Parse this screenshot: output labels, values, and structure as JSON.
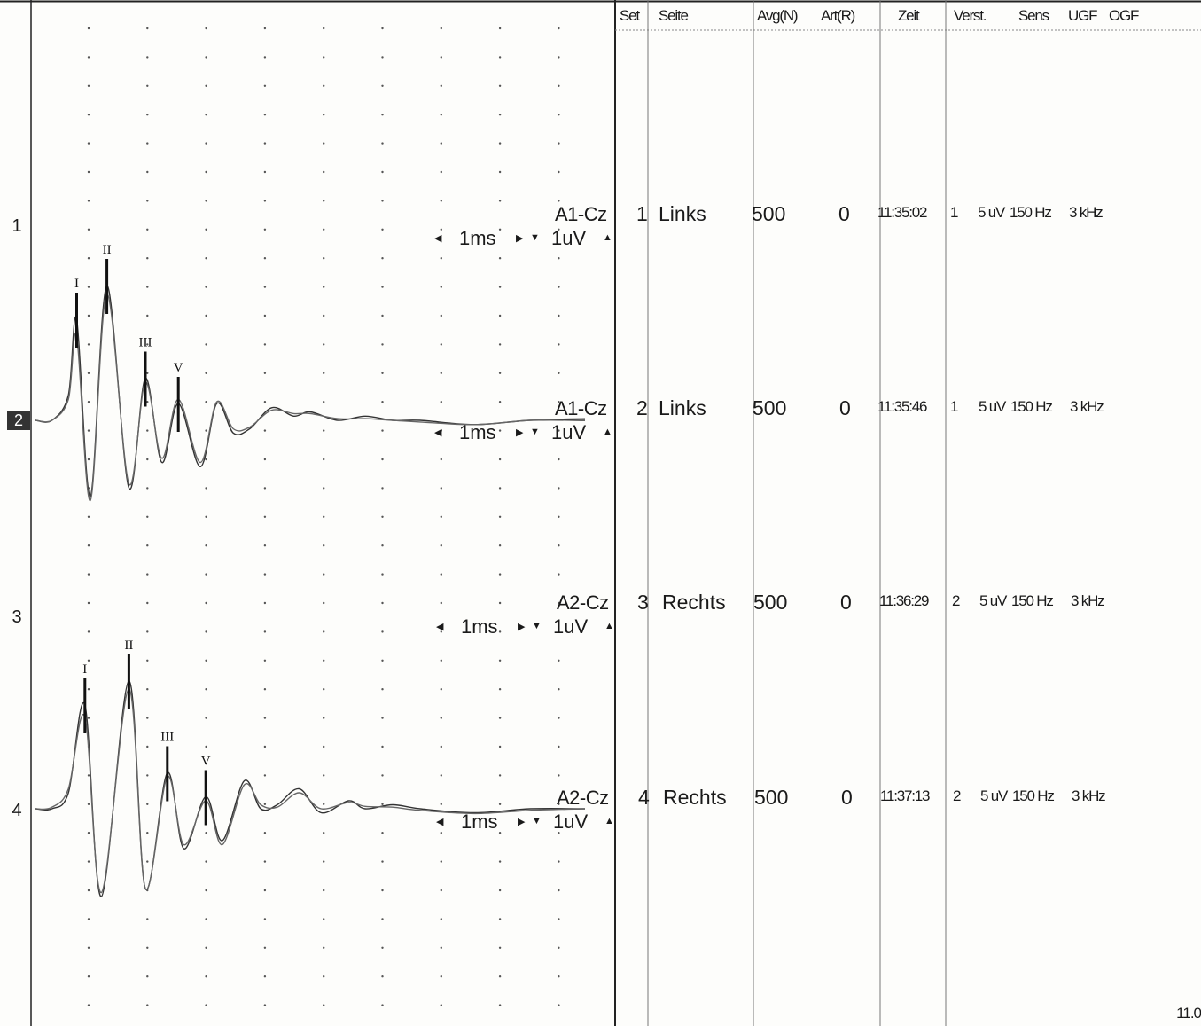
{
  "row_numbers": [
    "1",
    "2",
    "3",
    "4"
  ],
  "active_row": "2",
  "channels": [
    {
      "row": "1",
      "label": "A1-Cz",
      "time_scale": "1ms",
      "amp_scale": "1uV"
    },
    {
      "row": "2",
      "label": "A1-Cz",
      "time_scale": "1ms",
      "amp_scale": "1uV"
    },
    {
      "row": "3",
      "label": "A2-Cz",
      "time_scale": "1ms",
      "amp_scale": "1uV"
    },
    {
      "row": "4",
      "label": "A2-Cz",
      "time_scale": "1ms",
      "amp_scale": "1uV"
    }
  ],
  "arrows": {
    "left": "◀",
    "right": "▶",
    "down": "▼",
    "up": "▲"
  },
  "table": {
    "headers": {
      "set": "Set",
      "seite": "Seite",
      "avg": "Avg(N)",
      "art": "Art(R)",
      "zeit": "Zeit",
      "verst": "Verst.",
      "sens": "Sens",
      "ugf": "UGF",
      "ogf": "OGF"
    },
    "rows": [
      {
        "set": "1",
        "seite": "Links",
        "avg": "500",
        "art": "0",
        "zeit": "11:35:02",
        "verst": "1",
        "sens": "5 uV",
        "ugf": "150 Hz",
        "ogf": "3 kHz"
      },
      {
        "set": "2",
        "seite": "Links",
        "avg": "500",
        "art": "0",
        "zeit": "11:35:46",
        "verst": "1",
        "sens": "5 uV",
        "ugf": "150 Hz",
        "ogf": "3 kHz"
      },
      {
        "set": "3",
        "seite": "Rechts",
        "avg": "500",
        "art": "0",
        "zeit": "11:36:29",
        "verst": "2",
        "sens": "5 uV",
        "ugf": "150 Hz",
        "ogf": "3 kHz"
      },
      {
        "set": "4",
        "seite": "Rechts",
        "avg": "500",
        "art": "0",
        "zeit": "11:37:13",
        "verst": "2",
        "sens": "5 uV",
        "ugf": "150 Hz",
        "ogf": "3 kHz"
      }
    ]
  },
  "corner_text": "11.0",
  "chart_data": [
    {
      "type": "line",
      "title": "",
      "xlabel": "",
      "ylabel": "",
      "x_unit": "ms",
      "y_unit": "uV",
      "xlim": [
        0,
        10
      ],
      "grid": "dotted",
      "series": [
        {
          "name": "",
          "x": [
            0,
            0.3,
            0.6,
            0.75,
            1,
            1.3,
            1.7,
            2,
            2.3,
            2.6,
            3,
            3.3,
            3.6,
            3.9,
            4.3,
            4.7,
            5,
            5.5,
            6,
            6.5,
            7,
            8,
            9,
            10
          ],
          "y": [
            0,
            0,
            0.3,
            1.2,
            -0.9,
            1.6,
            -0.8,
            0.5,
            -0.5,
            0.2,
            -0.55,
            0.2,
            -0.15,
            -0.1,
            0.15,
            0.05,
            0.1,
            0,
            0.05,
            0,
            0,
            -0.05,
            0,
            0
          ]
        },
        {
          "name": "",
          "x": [
            0,
            0.3,
            0.6,
            0.75,
            1,
            1.3,
            1.7,
            2,
            2.3,
            2.6,
            3,
            3.3,
            3.6,
            3.9,
            4.3,
            4.7,
            5,
            5.5,
            6,
            6.5,
            7,
            8,
            9,
            10
          ],
          "y": [
            0,
            0,
            0.25,
            1.0,
            -0.95,
            1.5,
            -0.75,
            0.45,
            -0.45,
            0.25,
            -0.5,
            0.22,
            -0.1,
            -0.08,
            0.12,
            0.08,
            0.08,
            0.02,
            0.02,
            0,
            -0.02,
            -0.05,
            0,
            0.02
          ]
        }
      ],
      "peaks": [
        {
          "label": "I",
          "x": 0.75
        },
        {
          "label": "II",
          "x": 1.3
        },
        {
          "label": "III",
          "x": 2.0
        },
        {
          "label": "V",
          "x": 2.6
        }
      ]
    },
    {
      "type": "line",
      "title": "",
      "xlabel": "",
      "ylabel": "",
      "x_unit": "ms",
      "y_unit": "uV",
      "xlim": [
        0,
        10
      ],
      "grid": "dotted",
      "series": [
        {
          "name": "",
          "x": [
            0,
            0.3,
            0.6,
            0.9,
            1.2,
            1.7,
            2,
            2.4,
            2.7,
            3.1,
            3.4,
            3.8,
            4.1,
            4.4,
            4.8,
            5.2,
            5.7,
            6,
            6.5,
            7,
            8,
            9,
            10
          ],
          "y": [
            0,
            0,
            0.2,
            1.3,
            -1.1,
            1.6,
            -1.0,
            0.45,
            -0.5,
            0.15,
            -0.4,
            0.35,
            0,
            0.05,
            0.25,
            -0.05,
            0.1,
            0,
            0.05,
            0,
            -0.05,
            0,
            0
          ]
        },
        {
          "name": "",
          "x": [
            0,
            0.3,
            0.6,
            0.9,
            1.2,
            1.7,
            2,
            2.4,
            2.7,
            3.1,
            3.4,
            3.8,
            4.1,
            4.4,
            4.8,
            5.2,
            5.7,
            6,
            6.5,
            7,
            8,
            9,
            10
          ],
          "y": [
            0,
            0.02,
            0.25,
            1.15,
            -1.05,
            1.5,
            -1.0,
            0.4,
            -0.45,
            0.1,
            -0.45,
            0.3,
            0.05,
            0.02,
            0.2,
            0,
            0.08,
            0.03,
            0.02,
            -0.02,
            -0.06,
            -0.02,
            0
          ]
        }
      ],
      "peaks": [
        {
          "label": "I",
          "x": 0.9
        },
        {
          "label": "II",
          "x": 1.7
        },
        {
          "label": "III",
          "x": 2.4
        },
        {
          "label": "V",
          "x": 3.1
        }
      ]
    }
  ]
}
